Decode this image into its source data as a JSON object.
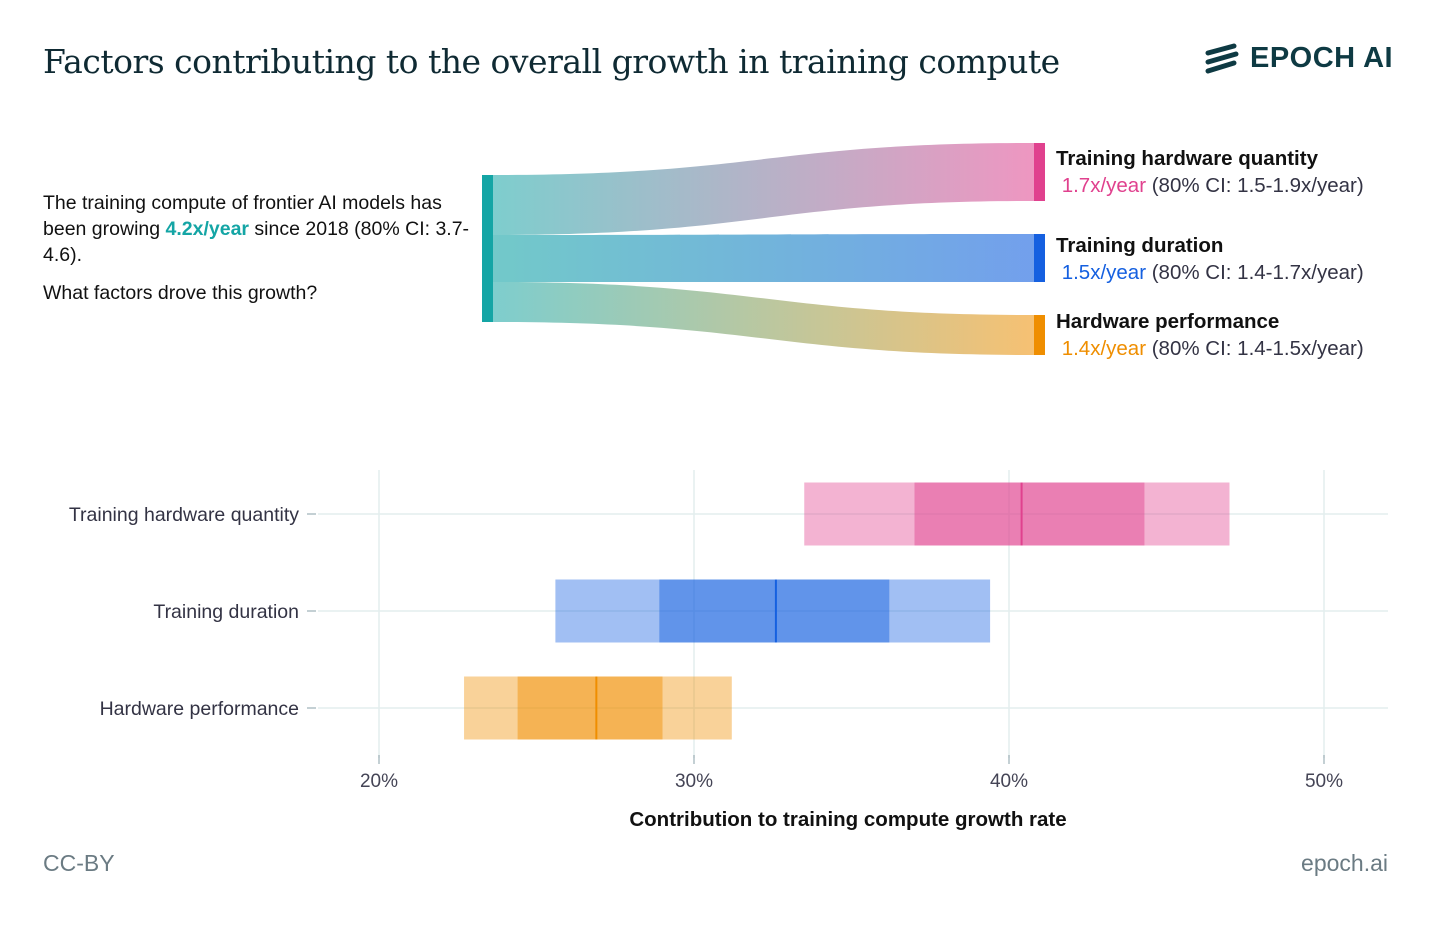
{
  "title": "Factors contributing to the overall growth in training compute",
  "logo": {
    "text": "EPOCH AI",
    "icon": "epoch-stripes-icon"
  },
  "intro": {
    "line1_pre": "The training compute of frontier AI models has been growing ",
    "line1_rate": "4.2x/year",
    "line1_post": " since 2018 (80% CI: 3.7-4.6).",
    "question": "What factors drove this growth?"
  },
  "colors": {
    "source": "#14a5a5",
    "quantity": "#e0418e",
    "duration": "#1560e0",
    "performance": "#ef8e00"
  },
  "factors": [
    {
      "title": "Training hardware quantity",
      "rate": "1.7x/year",
      "ci": " (80% CI: 1.5-1.9x/year)"
    },
    {
      "title": "Training duration",
      "rate": "1.5x/year",
      "ci": " (80% CI: 1.4-1.7x/year)"
    },
    {
      "title": "Hardware performance",
      "rate": "1.4x/year",
      "ci": " (80% CI: 1.4-1.5x/year)"
    }
  ],
  "chart_data": {
    "type": "range-bar",
    "xlabel": "Contribution to training compute growth rate",
    "xlim": [
      17.5,
      52
    ],
    "xticks": [
      20,
      30,
      40,
      50
    ],
    "xtick_labels": [
      "20%",
      "30%",
      "40%",
      "50%"
    ],
    "categories": [
      "Training hardware quantity",
      "Training duration",
      "Hardware performance"
    ],
    "series": [
      {
        "name": "Training hardware quantity",
        "outer": [
          33.5,
          47.0
        ],
        "inner": [
          37.0,
          44.3
        ],
        "median": 40.4
      },
      {
        "name": "Training duration",
        "outer": [
          25.6,
          39.4
        ],
        "inner": [
          28.9,
          36.2
        ],
        "median": 32.6
      },
      {
        "name": "Hardware performance",
        "outer": [
          22.7,
          31.2
        ],
        "inner": [
          24.4,
          29.0
        ],
        "median": 26.9
      }
    ]
  },
  "footer": {
    "license": "CC-BY",
    "site": "epoch.ai"
  }
}
